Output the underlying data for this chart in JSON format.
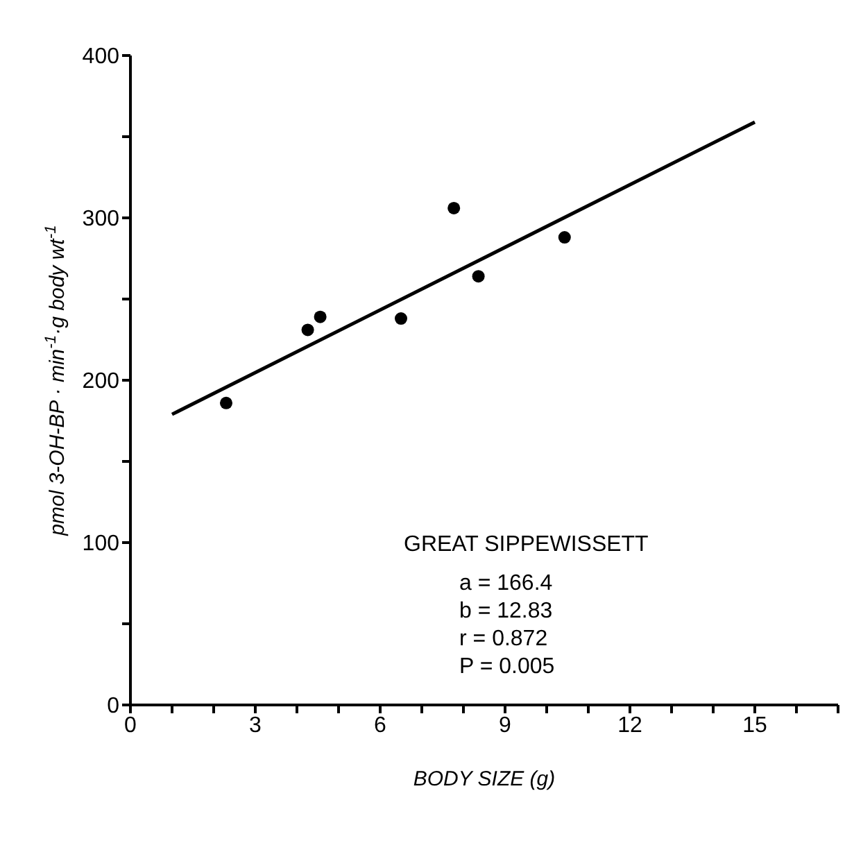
{
  "chart_data": {
    "type": "scatter",
    "xlabel": "BODY SIZE (g)",
    "ylabel": "pmol 3-OH-BP · min$^{-1}$·g body wt$^{-1}$",
    "x": [
      2.3,
      4.26,
      4.56,
      6.5,
      7.77,
      8.36,
      10.43
    ],
    "series": [
      {
        "color": "#000000",
        "values": [
          186,
          231,
          239,
          238,
          306,
          264,
          288
        ],
        "marker": "circle"
      },
      {
        "type": "line",
        "color": "#000000",
        "x": [
          1,
          15
        ],
        "values": [
          179,
          359
        ],
        "marker": "none"
      }
    ],
    "xlim": [
      0,
      17
    ],
    "xticks": [
      0,
      {
        "value": 1,
        "label": null
      },
      {
        "value": 2,
        "label": null
      },
      3,
      {
        "value": 4,
        "label": null
      },
      {
        "value": 5,
        "label": null
      },
      6,
      {
        "value": 7,
        "label": null
      },
      {
        "value": 8,
        "label": null
      },
      9,
      {
        "value": 10,
        "label": null
      },
      {
        "value": 11,
        "label": null
      },
      12,
      {
        "value": 13,
        "label": null
      },
      {
        "value": 14,
        "label": null
      },
      15,
      {
        "value": 16,
        "label": null
      },
      {
        "value": 17,
        "label": null
      }
    ],
    "ylim": [
      0,
      400
    ],
    "yticks": [
      0,
      {
        "value": 50,
        "label": null
      },
      100,
      {
        "value": 150,
        "label": null
      },
      200,
      {
        "value": 250,
        "label": null
      },
      300,
      {
        "value": 350,
        "label": null
      },
      400
    ],
    "annotations": [
      "GREAT SIPPEWISSETT",
      "a = 166.4",
      "b = 12.83",
      "r = 0.872",
      "P = 0.005"
    ]
  }
}
